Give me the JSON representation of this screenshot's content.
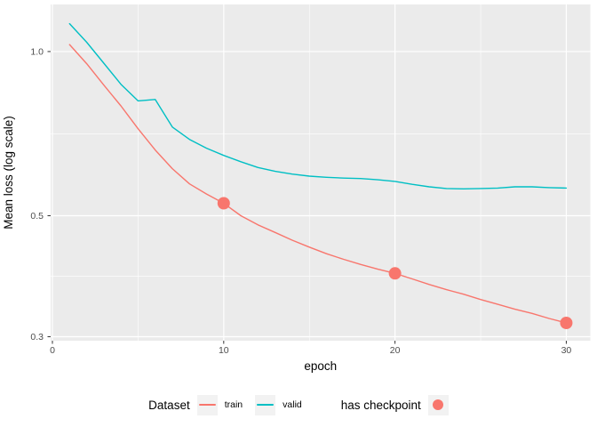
{
  "colors": {
    "train": "#F8766D",
    "valid": "#00BFC4",
    "checkpoint": "#F8766D",
    "panel_bg": "#EBEBEB",
    "grid": "#FFFFFF",
    "tick_mark": "#333333",
    "tick_text": "#4D4D4D",
    "axis_title_text": "#000000",
    "legend_key_bg": "#F2F2F2"
  },
  "axis": {
    "x_title": "epoch",
    "y_title": "Mean loss (log scale)",
    "x_ticks": [
      {
        "value": 0,
        "label": "0"
      },
      {
        "value": 10,
        "label": "10"
      },
      {
        "value": 20,
        "label": "20"
      },
      {
        "value": 30,
        "label": "30"
      }
    ],
    "y_ticks": [
      {
        "value": 0.3,
        "label": "0.3"
      },
      {
        "value": 0.5,
        "label": "0.5"
      },
      {
        "value": 1.0,
        "label": "1.0"
      }
    ],
    "x_minor": [
      5,
      15,
      25
    ],
    "y_minor": [
      0.387,
      0.707
    ],
    "x_range": [
      -0.104,
      31.404
    ],
    "y_range": [
      0.295,
      1.22
    ],
    "y_scale": "log10"
  },
  "legend": {
    "dataset_title": "Dataset",
    "train_label": "train",
    "valid_label": "valid",
    "checkpoint_title": "has checkpoint"
  },
  "chart_data": {
    "type": "line",
    "title": "",
    "xlabel": "epoch",
    "ylabel": "Mean loss (log scale)",
    "y_scale": "log",
    "ylim": [
      0.295,
      1.22
    ],
    "xlim": [
      0,
      31
    ],
    "grid": true,
    "legend_position": "bottom",
    "x": [
      1,
      2,
      3,
      4,
      5,
      6,
      7,
      8,
      9,
      10,
      11,
      12,
      13,
      14,
      15,
      16,
      17,
      18,
      19,
      20,
      21,
      22,
      23,
      24,
      25,
      26,
      27,
      28,
      29,
      30
    ],
    "series": [
      {
        "name": "train",
        "values": [
          1.03,
          0.95,
          0.868,
          0.795,
          0.722,
          0.66,
          0.61,
          0.572,
          0.548,
          0.527,
          0.5,
          0.481,
          0.466,
          0.451,
          0.438,
          0.426,
          0.416,
          0.407,
          0.399,
          0.392,
          0.383,
          0.374,
          0.366,
          0.359,
          0.351,
          0.344,
          0.337,
          0.331,
          0.324,
          0.318
        ]
      },
      {
        "name": "valid",
        "values": [
          1.125,
          1.04,
          0.952,
          0.871,
          0.812,
          0.817,
          0.727,
          0.69,
          0.665,
          0.645,
          0.628,
          0.613,
          0.603,
          0.596,
          0.591,
          0.588,
          0.586,
          0.585,
          0.582,
          0.578,
          0.571,
          0.565,
          0.561,
          0.56,
          0.561,
          0.562,
          0.565,
          0.565,
          0.563,
          0.562
        ]
      }
    ],
    "checkpoints": {
      "series": "train",
      "epochs": [
        10,
        20,
        30
      ],
      "values": [
        0.527,
        0.392,
        0.318
      ],
      "marker_radius_px": 7
    }
  }
}
